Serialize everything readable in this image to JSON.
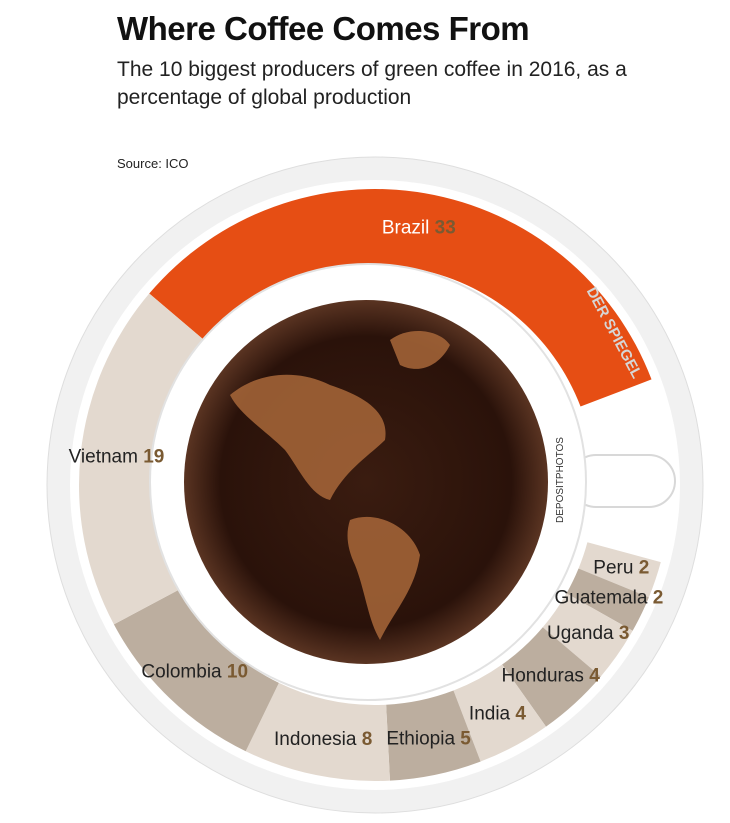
{
  "chart_data": {
    "type": "donut",
    "title": "Where Coffee Comes From",
    "subtitle": "The 10 biggest producers of green coffee in 2016, as a percentage of global production",
    "source": "Source: ICO",
    "credits": [
      "DER SPIEGEL",
      "DEPOSITPHOTOS"
    ],
    "categories": [
      "Brazil",
      "Peru",
      "Guatemala",
      "Uganda",
      "Honduras",
      "India",
      "Ethiopia",
      "Indonesia",
      "Colombia",
      "Vietnam"
    ],
    "values": [
      33,
      2,
      2,
      3,
      4,
      4,
      5,
      8,
      10,
      19
    ],
    "colors": [
      "#e64e14",
      "#e3d9cf",
      "#bcae9f",
      "#e3d9cf",
      "#bcae9f",
      "#e3d9cf",
      "#bcae9f",
      "#e3d9cf",
      "#bcae9f",
      "#e3d9cf"
    ]
  }
}
